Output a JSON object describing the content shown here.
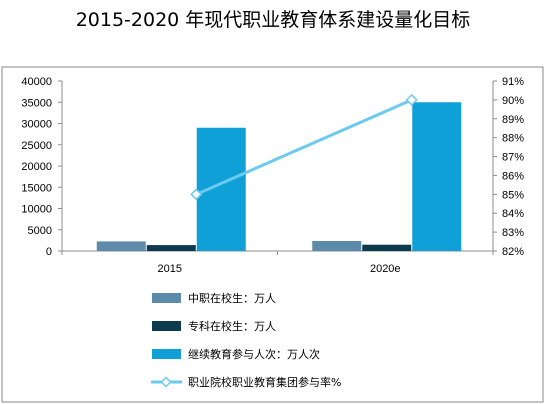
{
  "chart_data": {
    "type": "bar",
    "title": "2015-2020 年现代职业教育体系建设量化目标",
    "categories": [
      "2015",
      "2020e"
    ],
    "series": [
      {
        "name": "中职在校生：万人",
        "kind": "bar",
        "axis": "left",
        "values": [
          2250,
          2350
        ],
        "color": "#5b8ba8"
      },
      {
        "name": "专科在校生：万人",
        "kind": "bar",
        "axis": "left",
        "values": [
          1390,
          1480
        ],
        "color": "#0c3a4e"
      },
      {
        "name": "继续教育参与人次：万人次",
        "kind": "bar",
        "axis": "left",
        "values": [
          29000,
          35000
        ],
        "color": "#0ea0d6"
      },
      {
        "name": "职业院校职业教育集团参与率%",
        "kind": "line",
        "axis": "right",
        "values": [
          85,
          90
        ],
        "color": "#6ccaf0"
      }
    ],
    "y_left": {
      "min": 0,
      "max": 40000,
      "ticks": [
        "0",
        "5000",
        "10000",
        "15000",
        "20000",
        "25000",
        "30000",
        "35000",
        "40000"
      ]
    },
    "y_right": {
      "min": 82,
      "max": 91,
      "ticks": [
        "82%",
        "83%",
        "84%",
        "85%",
        "86%",
        "87%",
        "88%",
        "89%",
        "90%",
        "91%"
      ]
    },
    "grid": false,
    "legend_position": "bottom"
  }
}
